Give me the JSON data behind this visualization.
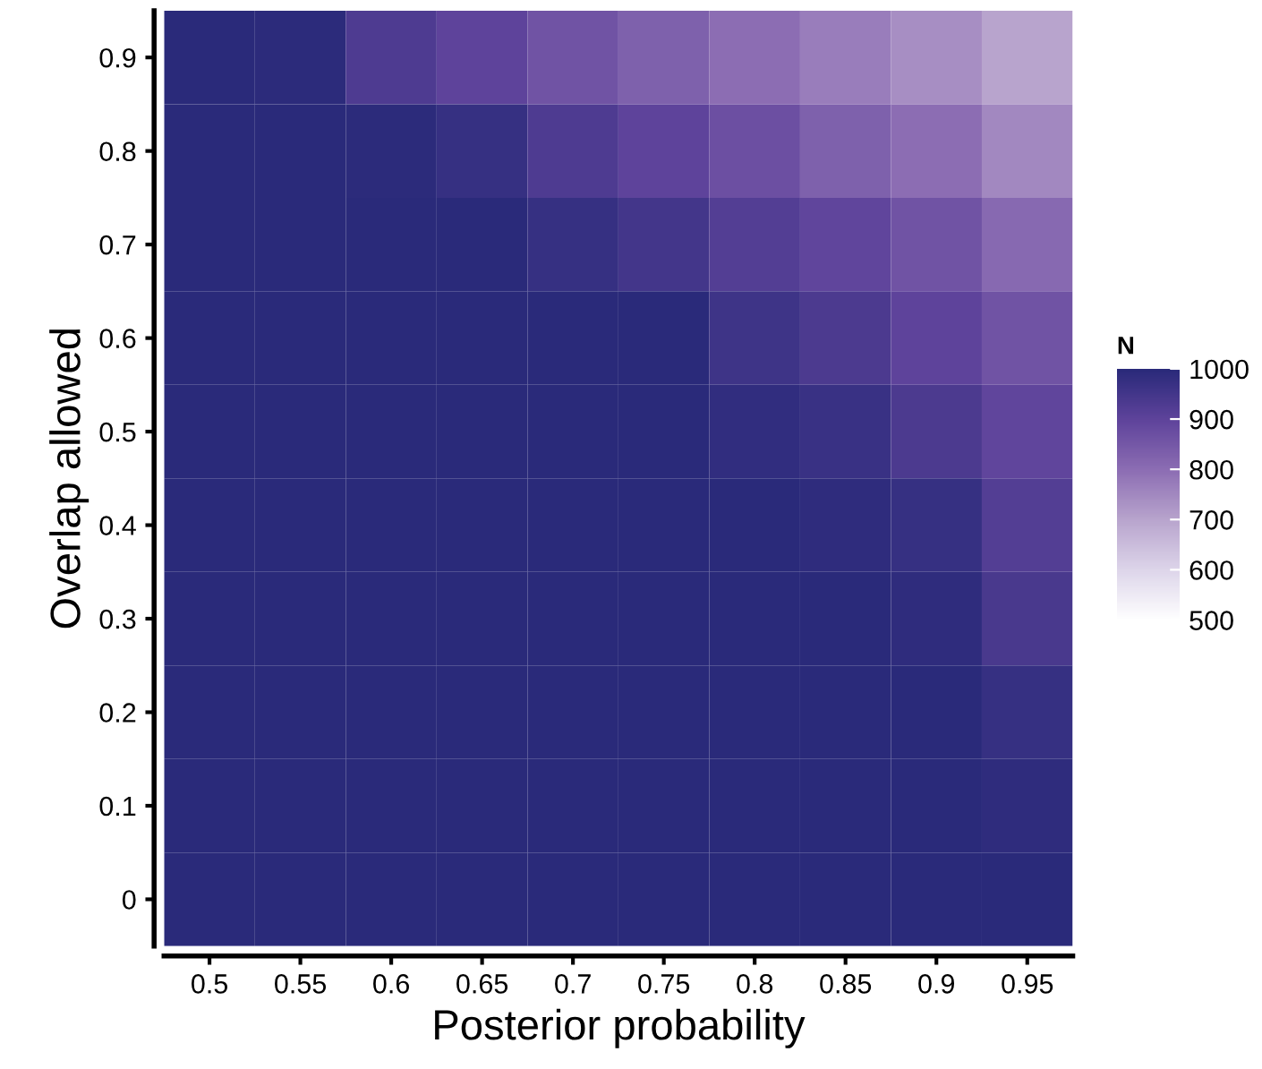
{
  "chart_data": {
    "type": "heatmap",
    "xlabel": "Posterior probability",
    "ylabel": "Overlap allowed",
    "clabel": "N",
    "categories": [
      "0.5",
      "0.55",
      "0.6",
      "0.65",
      "0.7",
      "0.75",
      "0.8",
      "0.85",
      "0.9",
      "0.95"
    ],
    "y_categories": [
      "0.9",
      "0.8",
      "0.7",
      "0.6",
      "0.5",
      "0.4",
      "0.3",
      "0.2",
      "0.1",
      "0"
    ],
    "cells": [
      [
        1000,
        995,
        930,
        900,
        860,
        830,
        800,
        770,
        740,
        700
      ],
      [
        1000,
        1000,
        995,
        975,
        930,
        900,
        870,
        830,
        800,
        750
      ],
      [
        1000,
        1000,
        1000,
        1000,
        975,
        950,
        920,
        895,
        860,
        810
      ],
      [
        1000,
        1000,
        1000,
        1000,
        1000,
        1000,
        960,
        935,
        900,
        860
      ],
      [
        1000,
        1000,
        1000,
        1000,
        1000,
        1000,
        985,
        970,
        935,
        895
      ],
      [
        1000,
        1000,
        1000,
        1000,
        1000,
        1000,
        1000,
        990,
        975,
        920
      ],
      [
        1000,
        1000,
        1000,
        1000,
        1000,
        1000,
        1000,
        1000,
        990,
        940
      ],
      [
        1000,
        1000,
        1000,
        1000,
        1000,
        1000,
        1000,
        1000,
        1000,
        975
      ],
      [
        1000,
        1000,
        1000,
        1000,
        1000,
        1000,
        1000,
        1000,
        1000,
        990
      ],
      [
        1000,
        1000,
        1000,
        1000,
        1000,
        1000,
        1000,
        1000,
        1000,
        1000
      ]
    ],
    "colors": [
      "#ffffff",
      "#ddd5ea",
      "#b8a4cd",
      "#8c6db3",
      "#5e439b",
      "#2a2a7a"
    ],
    "clim": [
      500,
      1000
    ],
    "cticks": [
      500,
      600,
      700,
      800,
      900,
      1000
    ]
  }
}
